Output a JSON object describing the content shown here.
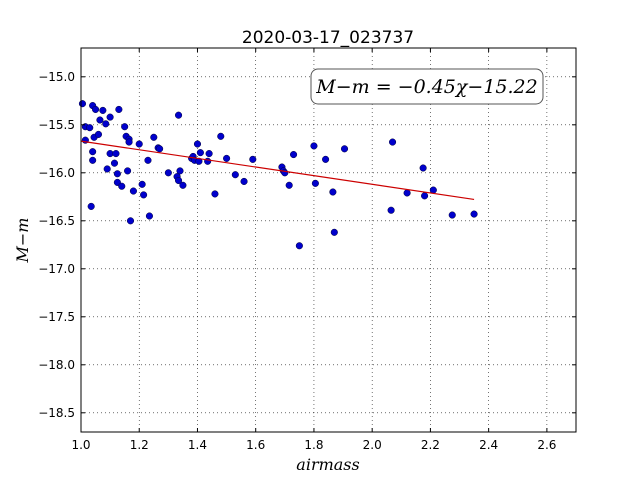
{
  "chart_data": {
    "type": "scatter",
    "title": "2020-03-17_023737",
    "xlabel": "airmass",
    "ylabel": "M−m",
    "xlim": [
      1.0,
      2.7
    ],
    "ylim": [
      -18.7,
      -14.7
    ],
    "y_inverted": true,
    "grid": true,
    "grid_style": "dotted",
    "x_ticks": [
      1.0,
      1.2,
      1.4,
      1.6,
      1.8,
      2.0,
      2.2,
      2.4,
      2.6
    ],
    "x_tick_labels": [
      "1.0",
      "1.2",
      "1.4",
      "1.6",
      "1.8",
      "2.0",
      "2.2",
      "2.4",
      "2.6"
    ],
    "y_ticks": [
      -15.0,
      -15.5,
      -16.0,
      -16.5,
      -17.0,
      -17.5,
      -18.0,
      -18.5
    ],
    "y_tick_labels": [
      "−15.0",
      "−15.5",
      "−16.0",
      "−16.5",
      "−17.0",
      "−17.5",
      "−18.0",
      "−18.5"
    ],
    "annotation": "M−m = −0.45χ−15.22",
    "fit": {
      "slope": -0.45,
      "intercept": -15.22,
      "x_range": [
        1.0,
        2.35
      ],
      "color": "#cc0000"
    },
    "marker_color": "#0000cc",
    "points": [
      [
        1.005,
        -15.28
      ],
      [
        1.015,
        -15.52
      ],
      [
        1.015,
        -15.66
      ],
      [
        1.03,
        -15.53
      ],
      [
        1.035,
        -16.35
      ],
      [
        1.04,
        -15.3
      ],
      [
        1.04,
        -15.78
      ],
      [
        1.04,
        -15.87
      ],
      [
        1.045,
        -15.63
      ],
      [
        1.05,
        -15.34
      ],
      [
        1.06,
        -15.6
      ],
      [
        1.065,
        -15.45
      ],
      [
        1.075,
        -15.35
      ],
      [
        1.085,
        -15.49
      ],
      [
        1.09,
        -15.96
      ],
      [
        1.1,
        -15.42
      ],
      [
        1.1,
        -15.8
      ],
      [
        1.115,
        -15.9
      ],
      [
        1.12,
        -15.8
      ],
      [
        1.125,
        -16.01
      ],
      [
        1.125,
        -16.1
      ],
      [
        1.13,
        -15.34
      ],
      [
        1.14,
        -16.14
      ],
      [
        1.15,
        -15.52
      ],
      [
        1.155,
        -15.62
      ],
      [
        1.16,
        -15.98
      ],
      [
        1.165,
        -15.65
      ],
      [
        1.165,
        -15.68
      ],
      [
        1.17,
        -16.5
      ],
      [
        1.18,
        -16.19
      ],
      [
        1.2,
        -15.7
      ],
      [
        1.21,
        -16.12
      ],
      [
        1.215,
        -16.23
      ],
      [
        1.23,
        -15.87
      ],
      [
        1.235,
        -16.45
      ],
      [
        1.25,
        -15.63
      ],
      [
        1.265,
        -15.74
      ],
      [
        1.27,
        -15.75
      ],
      [
        1.3,
        -16.0
      ],
      [
        1.33,
        -16.04
      ],
      [
        1.335,
        -15.4
      ],
      [
        1.335,
        -16.08
      ],
      [
        1.34,
        -15.98
      ],
      [
        1.35,
        -16.13
      ],
      [
        1.38,
        -15.85
      ],
      [
        1.385,
        -15.83
      ],
      [
        1.39,
        -15.87
      ],
      [
        1.4,
        -15.7
      ],
      [
        1.405,
        -15.88
      ],
      [
        1.41,
        -15.79
      ],
      [
        1.435,
        -15.88
      ],
      [
        1.44,
        -15.8
      ],
      [
        1.46,
        -16.22
      ],
      [
        1.48,
        -15.62
      ],
      [
        1.5,
        -15.85
      ],
      [
        1.53,
        -16.02
      ],
      [
        1.56,
        -16.09
      ],
      [
        1.59,
        -15.86
      ],
      [
        1.69,
        -15.94
      ],
      [
        1.695,
        -15.98
      ],
      [
        1.7,
        -16.0
      ],
      [
        1.715,
        -16.13
      ],
      [
        1.73,
        -15.81
      ],
      [
        1.75,
        -16.76
      ],
      [
        1.8,
        -15.72
      ],
      [
        1.805,
        -16.11
      ],
      [
        1.84,
        -15.86
      ],
      [
        1.865,
        -16.2
      ],
      [
        1.87,
        -16.62
      ],
      [
        1.905,
        -15.75
      ],
      [
        2.065,
        -16.39
      ],
      [
        2.07,
        -15.68
      ],
      [
        2.12,
        -16.21
      ],
      [
        2.175,
        -15.95
      ],
      [
        2.18,
        -16.24
      ],
      [
        2.21,
        -16.18
      ],
      [
        2.275,
        -16.44
      ],
      [
        2.35,
        -16.43
      ]
    ]
  }
}
